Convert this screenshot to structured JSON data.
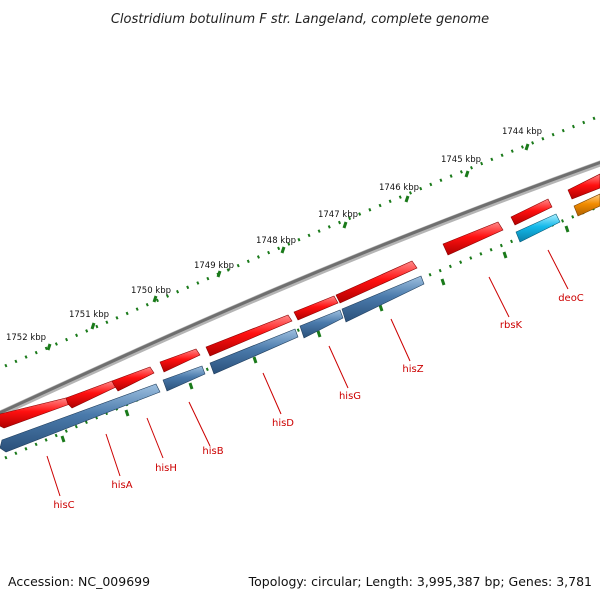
{
  "title": "Clostridium botulinum F str. Langeland, complete genome",
  "footer": {
    "accession": "Accession: NC_009699",
    "info": "Topology: circular; Length: 3,995,387 bp; Genes: 3,781"
  },
  "colors": {
    "backbone": "#7a7a7a",
    "tick": "#1a7a1a",
    "gene_forward": "#e60000",
    "gene_reverse": "#4a7aab",
    "gene_cyan": "#14b9ea",
    "gene_orange": "#f28c00",
    "label": "#cc0000"
  },
  "ticks": [
    {
      "label": "1752 kbp"
    },
    {
      "label": "1751 kbp"
    },
    {
      "label": "1750 kbp"
    },
    {
      "label": "1749 kbp"
    },
    {
      "label": "1748 kbp"
    },
    {
      "label": "1747 kbp"
    },
    {
      "label": "1746 kbp"
    },
    {
      "label": "1745 kbp"
    },
    {
      "label": "1744 kbp"
    }
  ],
  "genes": [
    {
      "name": "hisC",
      "color": "gene_reverse"
    },
    {
      "name": "hisA",
      "color": "gene_reverse"
    },
    {
      "name": "hisH",
      "color": "gene_reverse"
    },
    {
      "name": "hisB",
      "color": "gene_reverse"
    },
    {
      "name": "hisD",
      "color": "gene_reverse"
    },
    {
      "name": "hisG",
      "color": "gene_reverse"
    },
    {
      "name": "hisZ",
      "color": "gene_reverse"
    },
    {
      "name": "rbsK",
      "color": "gene_forward"
    },
    {
      "name": "deoC",
      "color": "gene_cyan"
    }
  ]
}
